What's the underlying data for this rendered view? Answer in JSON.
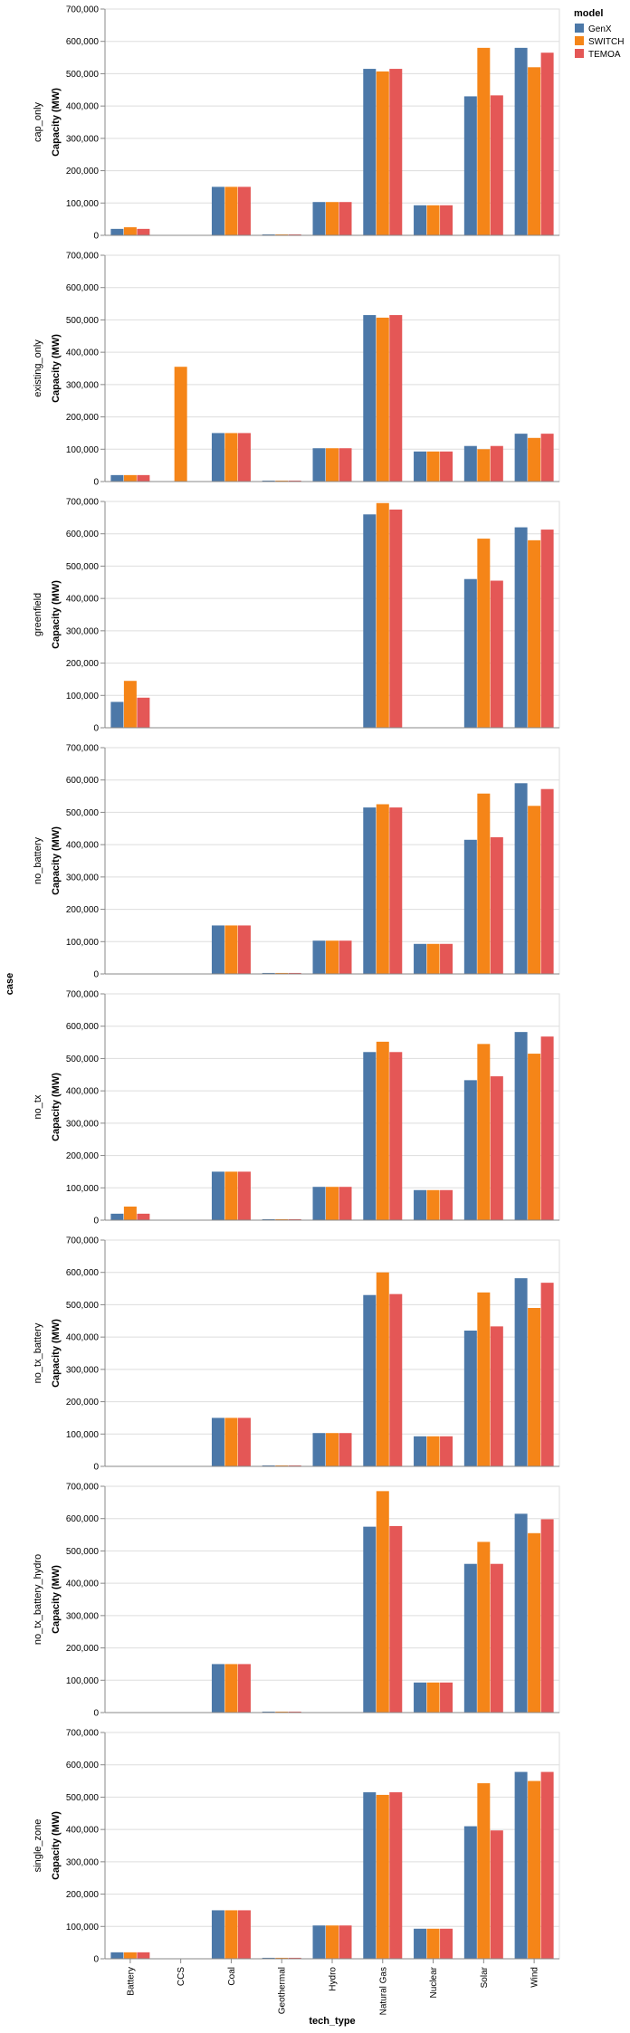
{
  "chart_data": {
    "type": "bar",
    "row_axis_title": "case",
    "x_axis_title": "tech_type",
    "y_axis_title": "Capacity (MW)",
    "ylim": [
      0,
      700000
    ],
    "y_ticks": [
      0,
      100000,
      200000,
      300000,
      400000,
      500000,
      600000,
      700000
    ],
    "y_tick_labels": [
      "0",
      "100,000",
      "200,000",
      "300,000",
      "400,000",
      "500,000",
      "600,000",
      "700,000"
    ],
    "grid": true,
    "legend": {
      "title": "model",
      "position": "top-right",
      "items": [
        {
          "name": "GenX",
          "color": "#4c78a8"
        },
        {
          "name": "SWITCH",
          "color": "#f58518"
        },
        {
          "name": "TEMOA",
          "color": "#e45756"
        }
      ]
    },
    "categories": [
      "Battery",
      "CCS",
      "Coal",
      "Geothermal",
      "Hydro",
      "Natural Gas",
      "Nuclear",
      "Solar",
      "Wind"
    ],
    "panels": [
      {
        "case": "cap_only",
        "series": [
          {
            "name": "GenX",
            "values": [
              20000,
              0,
              150000,
              3000,
              103000,
              515000,
              93000,
              430000,
              580000
            ]
          },
          {
            "name": "SWITCH",
            "values": [
              25000,
              0,
              150000,
              3000,
              103000,
              507000,
              93000,
              580000,
              520000
            ]
          },
          {
            "name": "TEMOA",
            "values": [
              20000,
              0,
              150000,
              3000,
              103000,
              515000,
              93000,
              433000,
              565000
            ]
          }
        ]
      },
      {
        "case": "existing_only",
        "series": [
          {
            "name": "GenX",
            "values": [
              20000,
              0,
              150000,
              3000,
              103000,
              515000,
              93000,
              110000,
              148000
            ]
          },
          {
            "name": "SWITCH",
            "values": [
              20000,
              355000,
              150000,
              3000,
              103000,
              507000,
              93000,
              100000,
              135000
            ]
          },
          {
            "name": "TEMOA",
            "values": [
              20000,
              0,
              150000,
              3000,
              103000,
              515000,
              93000,
              110000,
              148000
            ]
          }
        ]
      },
      {
        "case": "greenfield",
        "series": [
          {
            "name": "GenX",
            "values": [
              80000,
              0,
              0,
              0,
              0,
              660000,
              0,
              460000,
              620000
            ]
          },
          {
            "name": "SWITCH",
            "values": [
              145000,
              0,
              0,
              0,
              0,
              695000,
              0,
              585000,
              580000
            ]
          },
          {
            "name": "TEMOA",
            "values": [
              93000,
              0,
              0,
              0,
              0,
              675000,
              0,
              455000,
              613000
            ]
          }
        ]
      },
      {
        "case": "no_battery",
        "series": [
          {
            "name": "GenX",
            "values": [
              0,
              0,
              150000,
              3000,
              103000,
              515000,
              93000,
              415000,
              590000
            ]
          },
          {
            "name": "SWITCH",
            "values": [
              0,
              0,
              150000,
              3000,
              103000,
              525000,
              93000,
              558000,
              520000
            ]
          },
          {
            "name": "TEMOA",
            "values": [
              0,
              0,
              150000,
              3000,
              103000,
              515000,
              93000,
              423000,
              572000
            ]
          }
        ]
      },
      {
        "case": "no_tx",
        "series": [
          {
            "name": "GenX",
            "values": [
              20000,
              0,
              150000,
              3000,
              103000,
              520000,
              93000,
              433000,
              582000
            ]
          },
          {
            "name": "SWITCH",
            "values": [
              42000,
              0,
              150000,
              3000,
              103000,
              552000,
              93000,
              545000,
              515000
            ]
          },
          {
            "name": "TEMOA",
            "values": [
              20000,
              0,
              150000,
              3000,
              103000,
              520000,
              93000,
              445000,
              568000
            ]
          }
        ]
      },
      {
        "case": "no_tx_battery",
        "series": [
          {
            "name": "GenX",
            "values": [
              0,
              0,
              150000,
              3000,
              103000,
              530000,
              93000,
              420000,
              582000
            ]
          },
          {
            "name": "SWITCH",
            "values": [
              0,
              0,
              150000,
              3000,
              103000,
              600000,
              93000,
              538000,
              490000
            ]
          },
          {
            "name": "TEMOA",
            "values": [
              0,
              0,
              150000,
              3000,
              103000,
              533000,
              93000,
              433000,
              568000
            ]
          }
        ]
      },
      {
        "case": "no_tx_battery_hydro",
        "series": [
          {
            "name": "GenX",
            "values": [
              0,
              0,
              150000,
              3000,
              0,
              575000,
              93000,
              460000,
              615000
            ]
          },
          {
            "name": "SWITCH",
            "values": [
              0,
              0,
              150000,
              3000,
              0,
              685000,
              93000,
              528000,
              555000
            ]
          },
          {
            "name": "TEMOA",
            "values": [
              0,
              0,
              150000,
              3000,
              0,
              577000,
              93000,
              460000,
              598000
            ]
          }
        ]
      },
      {
        "case": "single_zone",
        "series": [
          {
            "name": "GenX",
            "values": [
              20000,
              0,
              150000,
              3000,
              103000,
              515000,
              93000,
              410000,
              578000
            ]
          },
          {
            "name": "SWITCH",
            "values": [
              20000,
              0,
              150000,
              3000,
              103000,
              507000,
              93000,
              543000,
              550000
            ]
          },
          {
            "name": "TEMOA",
            "values": [
              20000,
              0,
              150000,
              3000,
              103000,
              515000,
              93000,
              397000,
              578000
            ]
          }
        ]
      }
    ]
  }
}
